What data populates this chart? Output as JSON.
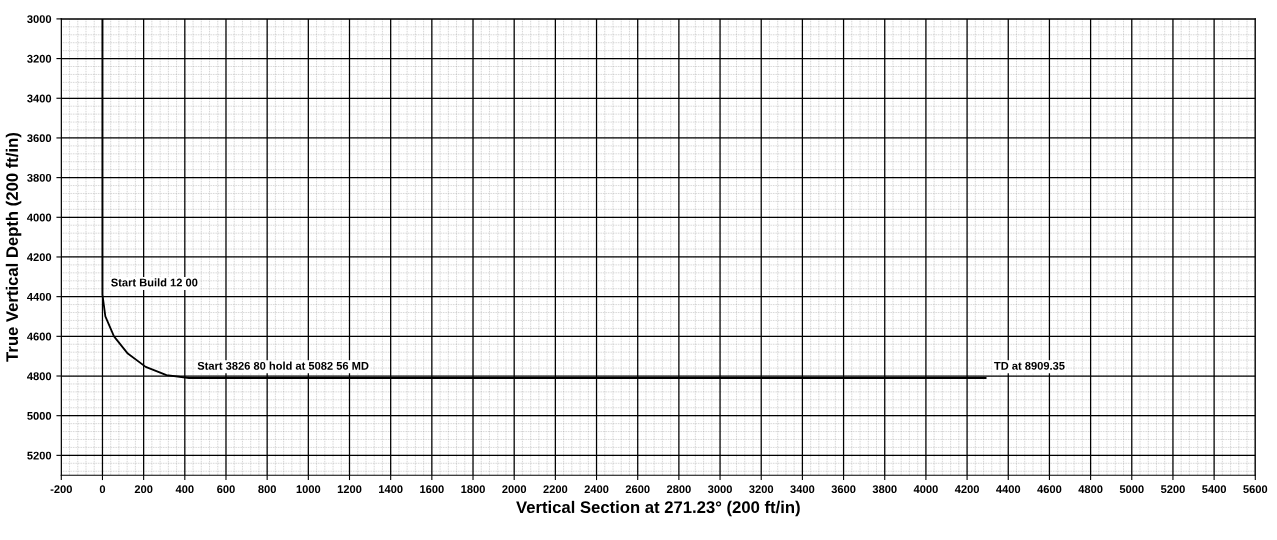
{
  "chart_data": {
    "type": "line",
    "xlabel": "Vertical Section at 271.23° (200 ft/in)",
    "ylabel": "True Vertical Depth (200 ft/in)",
    "series": [
      {
        "color": "#000000",
        "x": [
          0,
          0,
          14,
          56,
          123,
          210,
          311,
          420,
          1000,
          2000,
          3000,
          4290
        ],
        "values": [
          3000,
          4390,
          4499,
          4600,
          4687,
          4754,
          4796,
          4810,
          4810,
          4810,
          4810,
          4810
        ]
      }
    ],
    "annotations": [
      {
        "text": "Start Build 12 00",
        "x": 0,
        "y": 4390
      },
      {
        "text": "Start 3826 80 hold at 5082 56 MD",
        "x": 420,
        "y": 4810
      },
      {
        "text": "TD at 8909.35",
        "x": 4290,
        "y": 4810
      }
    ],
    "xlim": [
      -200,
      5600
    ],
    "ylim": [
      5300,
      3000
    ],
    "xticks": [
      -200,
      0,
      200,
      400,
      600,
      800,
      1000,
      1200,
      1400,
      1600,
      1800,
      2000,
      2200,
      2400,
      2600,
      2800,
      3000,
      3200,
      3400,
      3600,
      3800,
      4000,
      4200,
      4400,
      4600,
      4800,
      5000,
      5200,
      5400,
      5600
    ],
    "yticks": [
      3000,
      3200,
      3400,
      3600,
      3800,
      4000,
      4200,
      4400,
      4600,
      4800,
      5000,
      5200
    ],
    "grid": true,
    "marker": "none",
    "line_style": "solid",
    "legend": false
  }
}
